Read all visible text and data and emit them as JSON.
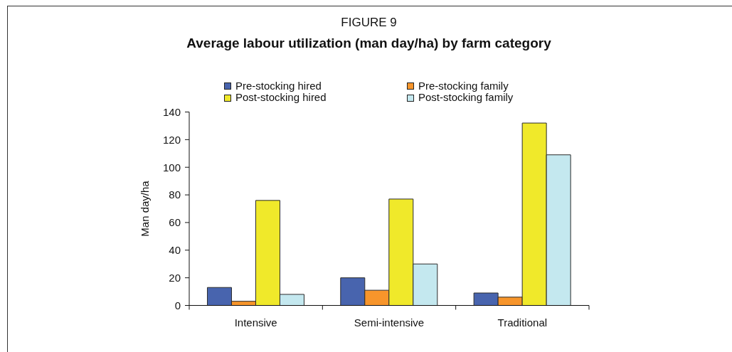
{
  "chart_data": {
    "type": "bar",
    "title": "Average labour utilization (man day/ha) by farm category",
    "annotations": [
      "FIGURE 9"
    ],
    "ylabel": "Man day/ha",
    "categories": [
      "Intensive",
      "Semi-intensive",
      "Traditional"
    ],
    "series": [
      {
        "name": "Pre-stocking hired",
        "color": "#4864ae",
        "values": [
          13,
          20,
          9
        ]
      },
      {
        "name": "Pre-stocking family",
        "color": "#f7952b",
        "values": [
          3,
          11,
          6
        ]
      },
      {
        "name": "Post-stocking hired",
        "color": "#f0e92a",
        "values": [
          76,
          77,
          132
        ]
      },
      {
        "name": "Post-stocking family",
        "color": "#c4e8ef",
        "values": [
          8,
          30,
          109
        ]
      }
    ],
    "ylim": [
      0,
      140
    ],
    "yticks": [
      0,
      20,
      40,
      60,
      80,
      100,
      120,
      140
    ],
    "legend": "top"
  }
}
